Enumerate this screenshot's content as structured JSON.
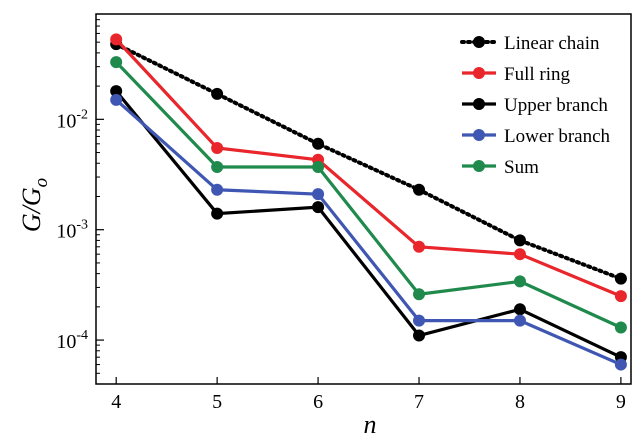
{
  "chart_data": {
    "type": "line",
    "title": "",
    "xlabel": "n",
    "ylabel": "G/G",
    "ylabel_subscript": "o",
    "x": [
      4,
      5,
      6,
      7,
      8,
      9
    ],
    "x_ticks": [
      "4",
      "5",
      "6",
      "7",
      "8",
      "9"
    ],
    "xlim": [
      3.8,
      9.1
    ],
    "y_scale": "log",
    "ylim": [
      4e-05,
      0.09
    ],
    "y_ticks": [
      {
        "value": 0.01,
        "base": "10",
        "exp": "-2"
      },
      {
        "value": 0.001,
        "base": "10",
        "exp": "-3"
      },
      {
        "value": 0.0001,
        "base": "10",
        "exp": "-4"
      }
    ],
    "grid": false,
    "legend_position": "top-right",
    "series": [
      {
        "name": "Linear chain",
        "color": "#000000",
        "style": "dotted",
        "values": [
          0.048,
          0.017,
          0.006,
          0.0023,
          0.0008,
          0.00036
        ]
      },
      {
        "name": "Full ring",
        "color": "#e8262b",
        "style": "solid",
        "values": [
          0.053,
          0.0055,
          0.0043,
          0.0007,
          0.0006,
          0.00025
        ]
      },
      {
        "name": "Upper branch",
        "color": "#000000",
        "style": "solid",
        "values": [
          0.018,
          0.0014,
          0.0016,
          0.00011,
          0.00019,
          7e-05
        ]
      },
      {
        "name": "Lower branch",
        "color": "#3f57b3",
        "style": "solid",
        "values": [
          0.015,
          0.0023,
          0.0021,
          0.00015,
          0.00015,
          6e-05
        ]
      },
      {
        "name": "Sum",
        "color": "#1f8a4c",
        "style": "solid",
        "values": [
          0.033,
          0.0037,
          0.0037,
          0.00026,
          0.00034,
          0.00013
        ]
      }
    ]
  }
}
